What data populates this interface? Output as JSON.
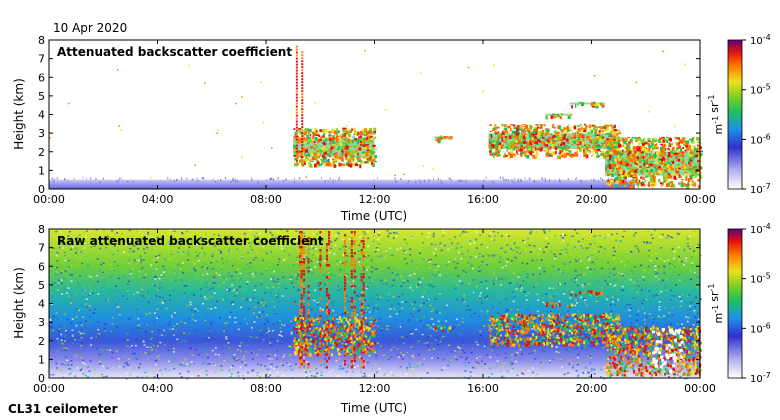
{
  "date_label": "10 Apr 2020",
  "instrument_label": "CL31 ceilometer",
  "chart_data": [
    {
      "type": "heatmap",
      "title": "Attenuated backscatter coefficient",
      "xlabel": "Time (UTC)",
      "ylabel": "Height (km)",
      "x_ticks": [
        "00:00",
        "04:00",
        "08:00",
        "12:00",
        "16:00",
        "20:00",
        "00:00"
      ],
      "xlim_hours": [
        0,
        24
      ],
      "y_ticks": [
        0,
        1,
        2,
        3,
        4,
        5,
        6,
        7,
        8
      ],
      "ylim": [
        0,
        8
      ],
      "colorbar": {
        "scale": "log",
        "range": [
          1e-07,
          0.0001
        ],
        "ticks": [
          "10^-7",
          "10^-6",
          "10^-5",
          "10^-4"
        ],
        "unit": "m-1 sr-1"
      },
      "features": [
        {
          "name": "boundary layer",
          "t_start": 0,
          "t_end": 21.6,
          "h_top": 0.5
        },
        {
          "name": "cloud",
          "t_start": 9.0,
          "t_end": 12.0,
          "h_base": 1.3,
          "h_top": 3.3
        },
        {
          "name": "cloud",
          "t_start": 14.2,
          "t_end": 14.8,
          "h_base": 2.6,
          "h_top": 2.9
        },
        {
          "name": "cloud",
          "t_start": 16.2,
          "t_end": 21.0,
          "h_base": 1.8,
          "h_top": 3.5
        },
        {
          "name": "cloud",
          "t_start": 20.5,
          "t_end": 24.0,
          "h_base": 0.2,
          "h_top": 2.8
        },
        {
          "name": "cloud",
          "t_start": 18.3,
          "t_end": 19.3,
          "h_base": 3.9,
          "h_top": 4.1
        },
        {
          "name": "cloud",
          "t_start": 19.2,
          "t_end": 20.5,
          "h_base": 4.5,
          "h_top": 4.7
        }
      ]
    },
    {
      "type": "heatmap",
      "title": "Raw attenuated backscatter coefficient",
      "xlabel": "Time (UTC)",
      "ylabel": "Height (km)",
      "x_ticks": [
        "00:00",
        "04:00",
        "08:00",
        "12:00",
        "16:00",
        "20:00",
        "00:00"
      ],
      "xlim_hours": [
        0,
        24
      ],
      "y_ticks": [
        0,
        1,
        2,
        3,
        4,
        5,
        6,
        7,
        8
      ],
      "ylim": [
        0,
        8
      ],
      "colorbar": {
        "scale": "log",
        "range": [
          1e-07,
          0.0001
        ],
        "ticks": [
          "10^-7",
          "10^-6",
          "10^-5",
          "10^-4"
        ],
        "unit": "m-1 sr-1"
      }
    }
  ]
}
